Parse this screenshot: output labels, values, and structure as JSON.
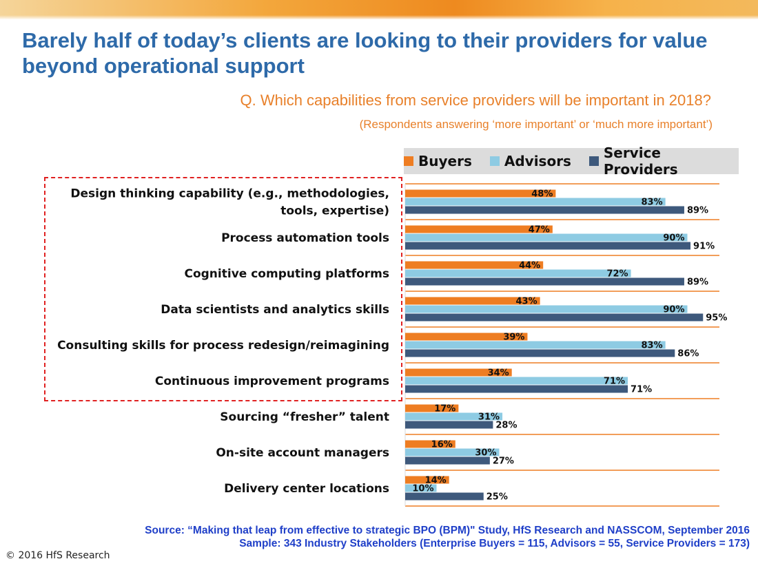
{
  "header": {
    "title": "Barely half of today’s clients are looking to their providers for value beyond operational support",
    "question": "Q. Which capabilities from service providers will be important in 2018?",
    "respondents": "(Respondents answering ‘more important’ or ‘much more important’)"
  },
  "chart_data": {
    "type": "bar",
    "orientation": "horizontal",
    "categories": [
      [
        "Design thinking capability (e.g., methodologies,",
        "tools, expertise)"
      ],
      [
        "Process automation tools"
      ],
      [
        "Cognitive computing platforms"
      ],
      [
        "Data scientists and analytics skills"
      ],
      [
        "Consulting skills for process redesign/reimagining"
      ],
      [
        "Continuous improvement programs"
      ],
      [
        "Sourcing “fresher” talent"
      ],
      [
        "On-site account managers"
      ],
      [
        "Delivery center locations"
      ]
    ],
    "series": [
      {
        "name": "Buyers",
        "color": "#ee7d22",
        "values": [
          48,
          47,
          44,
          43,
          39,
          34,
          17,
          16,
          14
        ],
        "labels": [
          "48%",
          "47%",
          "44%",
          "43%",
          "39%",
          "34%",
          "17%",
          "16%",
          "14%"
        ]
      },
      {
        "name": "Advisors",
        "color": "#8ecbe3",
        "values": [
          83,
          90,
          72,
          90,
          83,
          71,
          31,
          30,
          10
        ],
        "labels": [
          "83%",
          "90%",
          "72%",
          "90%",
          "83%",
          "71%",
          "31%",
          "30%",
          "10%"
        ]
      },
      {
        "name": "Service Providers",
        "color": "#3e597c",
        "values": [
          89,
          91,
          89,
          95,
          86,
          71,
          28,
          27,
          25
        ],
        "labels": [
          "89%",
          "91%",
          "89%",
          "95%",
          "86%",
          "71%",
          "28%",
          "27%",
          "25%"
        ]
      }
    ],
    "xlim": [
      0,
      100
    ],
    "grid": false,
    "legend_position": "top",
    "highlighted_categories": [
      0,
      1,
      2,
      3,
      4,
      5
    ]
  },
  "footer": {
    "source_line1": "Source: “Making that leap from effective to strategic BPO (BPM)\" Study, HfS Research and NASSCOM, September 2016",
    "source_line2": "Sample: 343 Industry Stakeholders (Enterprise Buyers = 115, Advisors = 55, Service Providers = 173)",
    "copyright": "© 2016 HfS Research"
  }
}
